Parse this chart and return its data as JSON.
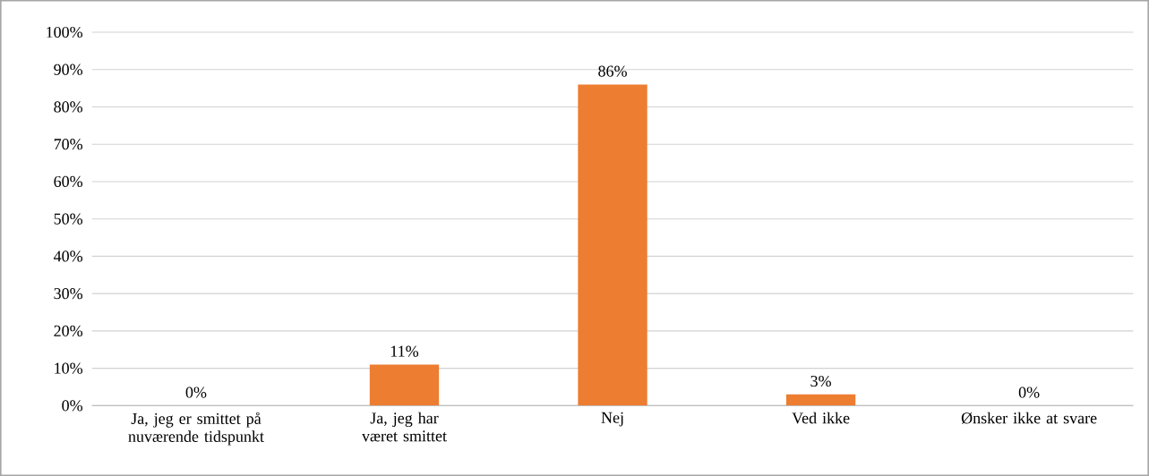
{
  "chart_data": {
    "type": "bar",
    "categories": [
      "Ja, jeg er smittet på nuværende tidspunkt",
      "Ja, jeg har været smittet",
      "Nej",
      "Ved ikke",
      "Ønsker ikke at svare"
    ],
    "values": [
      0,
      11,
      86,
      3,
      0
    ],
    "value_labels": [
      "0%",
      "11%",
      "86%",
      "3%",
      "0%"
    ],
    "color": "#ed7d31",
    "ylim": [
      0,
      100
    ],
    "yticks": [
      {
        "value": 0,
        "label": "0%"
      },
      {
        "value": 10,
        "label": "10%"
      },
      {
        "value": 20,
        "label": "20%"
      },
      {
        "value": 30,
        "label": "30%"
      },
      {
        "value": 40,
        "label": "40%"
      },
      {
        "value": 50,
        "label": "50%"
      },
      {
        "value": 60,
        "label": "60%"
      },
      {
        "value": 70,
        "label": "70%"
      },
      {
        "value": 80,
        "label": "80%"
      },
      {
        "value": 90,
        "label": "90%"
      },
      {
        "value": 100,
        "label": "100%"
      }
    ],
    "grid": "y"
  }
}
